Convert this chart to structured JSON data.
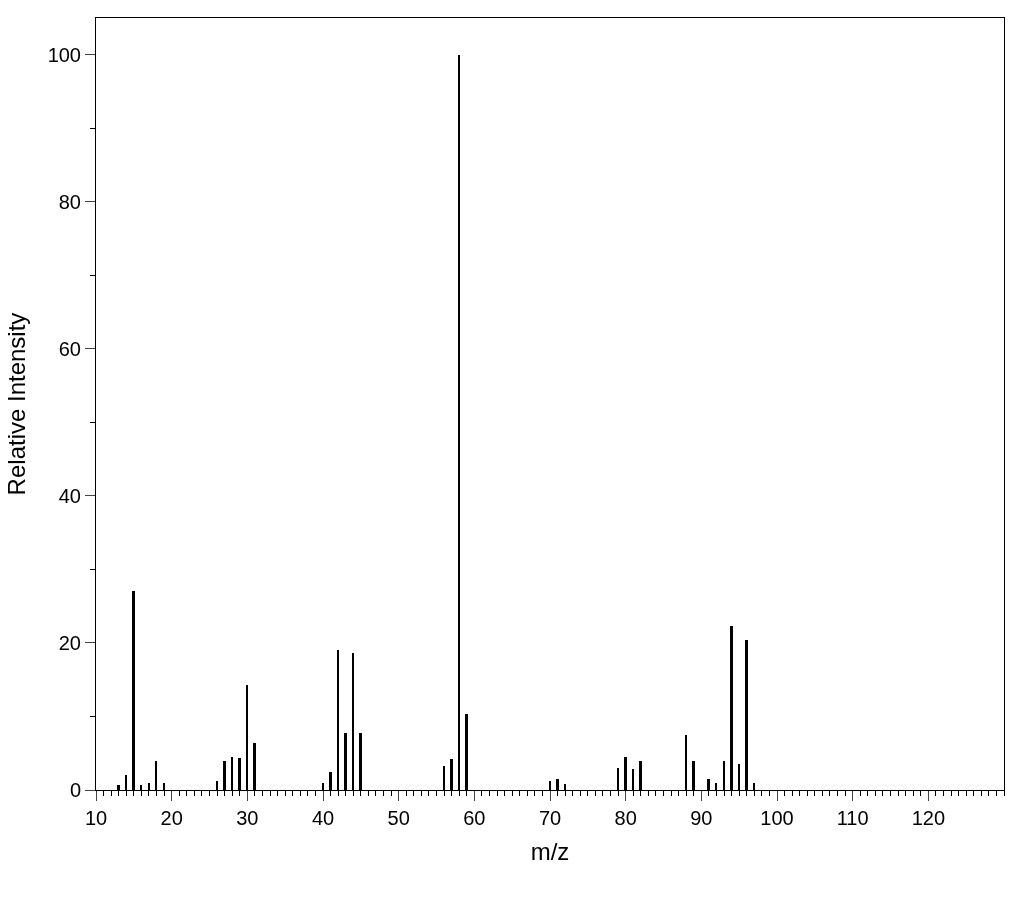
{
  "chart_data": {
    "type": "bar",
    "xlabel": "m/z",
    "ylabel": "Relative Intensity",
    "x": [
      13,
      14,
      15,
      16,
      17,
      18,
      19,
      26,
      27,
      28,
      29,
      30,
      31,
      40,
      41,
      42,
      43,
      44,
      45,
      56,
      57,
      58,
      59,
      70,
      71,
      72,
      79,
      80,
      81,
      82,
      88,
      89,
      91,
      92,
      93,
      94,
      95,
      96,
      97
    ],
    "values": [
      0.7,
      2,
      27,
      0.7,
      1,
      4,
      1,
      1.2,
      4,
      4.5,
      4.3,
      14.3,
      6.4,
      1,
      2.5,
      19,
      7.8,
      18.7,
      7.8,
      3.3,
      4.2,
      100,
      10.3,
      1.2,
      1.5,
      0.8,
      3,
      4.5,
      2.8,
      4,
      7.5,
      4,
      1.5,
      1,
      4,
      22.3,
      3.6,
      20.4,
      1
    ],
    "color": "#000000",
    "xlim": [
      10,
      130
    ],
    "xticks": [
      10,
      20,
      30,
      40,
      50,
      60,
      70,
      80,
      90,
      100,
      110,
      120
    ],
    "ylim": [
      0,
      105
    ],
    "yticks": [
      0,
      20,
      40,
      60,
      80,
      100
    ]
  }
}
